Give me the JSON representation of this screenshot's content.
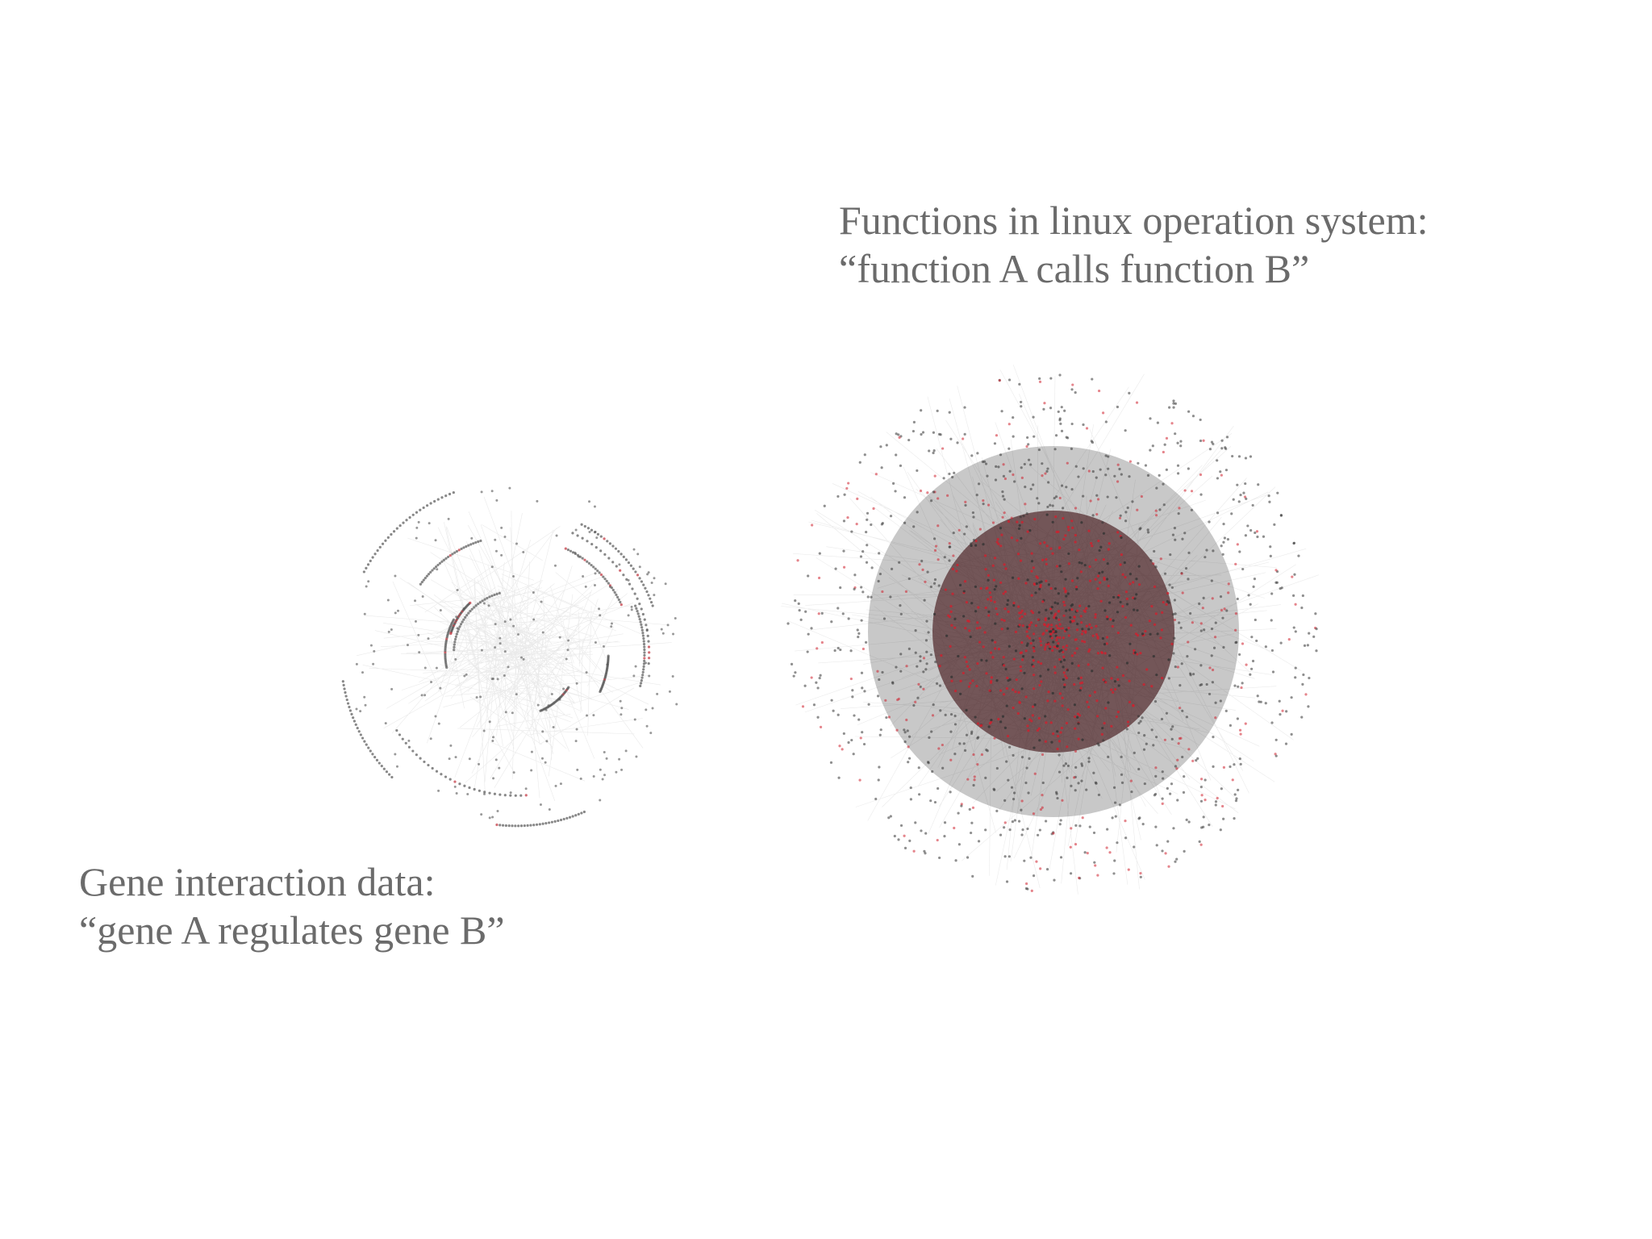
{
  "linux_network": {
    "caption_lines": [
      "Functions in linux operation system:",
      "“function A calls function B”"
    ]
  },
  "gene_network": {
    "caption_lines": [
      "Gene interaction data:",
      "“gene A regulates gene B”"
    ]
  }
}
